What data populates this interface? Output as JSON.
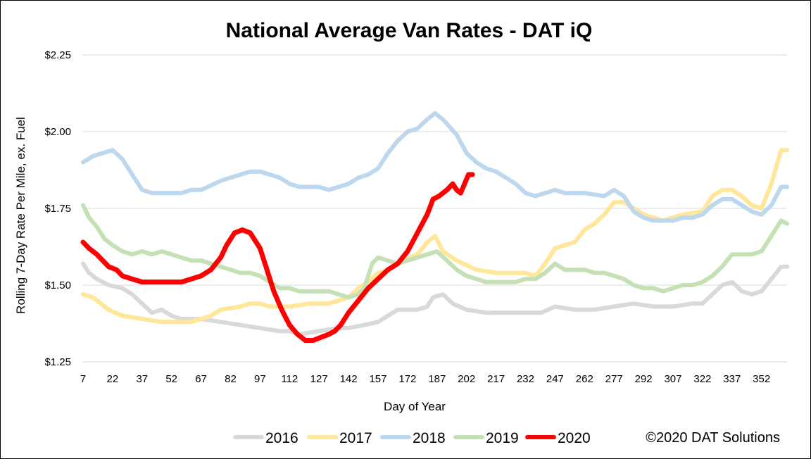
{
  "chart_data": {
    "type": "line",
    "title": "National Average Van Rates - DAT iQ",
    "xlabel": "Day of Year",
    "ylabel": "Rolling 7-Day Rate Per Mile, ex. Fuel",
    "credit": "©2020 DAT Solutions",
    "xlim": [
      7,
      365
    ],
    "ylim": [
      1.25,
      2.25
    ],
    "x_ticks": [
      7,
      22,
      37,
      52,
      67,
      82,
      97,
      112,
      127,
      142,
      157,
      172,
      187,
      202,
      217,
      232,
      247,
      262,
      277,
      292,
      307,
      322,
      337,
      352
    ],
    "y_ticks": [
      1.25,
      1.5,
      1.75,
      2.0,
      2.25
    ],
    "y_tick_labels": [
      "$1.25",
      "$1.50",
      "$1.75",
      "$2.00",
      "$2.25"
    ],
    "grid": "horizontal",
    "legend_position": "bottom",
    "series": [
      {
        "name": "2016",
        "color": "#D9D9D9",
        "points": [
          [
            7,
            1.57
          ],
          [
            10,
            1.54
          ],
          [
            14,
            1.52
          ],
          [
            20,
            1.5
          ],
          [
            27,
            1.49
          ],
          [
            32,
            1.47
          ],
          [
            37,
            1.44
          ],
          [
            42,
            1.41
          ],
          [
            47,
            1.42
          ],
          [
            52,
            1.4
          ],
          [
            57,
            1.39
          ],
          [
            67,
            1.39
          ],
          [
            77,
            1.38
          ],
          [
            87,
            1.37
          ],
          [
            97,
            1.36
          ],
          [
            107,
            1.35
          ],
          [
            112,
            1.35
          ],
          [
            117,
            1.34
          ],
          [
            127,
            1.35
          ],
          [
            137,
            1.36
          ],
          [
            142,
            1.36
          ],
          [
            150,
            1.37
          ],
          [
            157,
            1.38
          ],
          [
            162,
            1.4
          ],
          [
            167,
            1.42
          ],
          [
            177,
            1.42
          ],
          [
            182,
            1.43
          ],
          [
            185,
            1.46
          ],
          [
            190,
            1.47
          ],
          [
            195,
            1.44
          ],
          [
            202,
            1.42
          ],
          [
            212,
            1.41
          ],
          [
            222,
            1.41
          ],
          [
            232,
            1.41
          ],
          [
            240,
            1.41
          ],
          [
            247,
            1.43
          ],
          [
            257,
            1.42
          ],
          [
            267,
            1.42
          ],
          [
            277,
            1.43
          ],
          [
            287,
            1.44
          ],
          [
            297,
            1.43
          ],
          [
            307,
            1.43
          ],
          [
            317,
            1.44
          ],
          [
            322,
            1.44
          ],
          [
            327,
            1.47
          ],
          [
            332,
            1.5
          ],
          [
            337,
            1.51
          ],
          [
            342,
            1.48
          ],
          [
            347,
            1.47
          ],
          [
            352,
            1.48
          ],
          [
            357,
            1.52
          ],
          [
            362,
            1.56
          ],
          [
            365,
            1.56
          ]
        ]
      },
      {
        "name": "2017",
        "color": "#FFE699",
        "points": [
          [
            7,
            1.47
          ],
          [
            12,
            1.46
          ],
          [
            20,
            1.42
          ],
          [
            27,
            1.4
          ],
          [
            37,
            1.39
          ],
          [
            47,
            1.38
          ],
          [
            57,
            1.38
          ],
          [
            62,
            1.38
          ],
          [
            67,
            1.39
          ],
          [
            72,
            1.4
          ],
          [
            77,
            1.42
          ],
          [
            87,
            1.43
          ],
          [
            92,
            1.44
          ],
          [
            97,
            1.44
          ],
          [
            102,
            1.43
          ],
          [
            112,
            1.43
          ],
          [
            122,
            1.44
          ],
          [
            132,
            1.44
          ],
          [
            142,
            1.46
          ],
          [
            147,
            1.49
          ],
          [
            152,
            1.51
          ],
          [
            157,
            1.54
          ],
          [
            162,
            1.55
          ],
          [
            170,
            1.58
          ],
          [
            177,
            1.6
          ],
          [
            182,
            1.64
          ],
          [
            186,
            1.66
          ],
          [
            190,
            1.61
          ],
          [
            197,
            1.58
          ],
          [
            207,
            1.55
          ],
          [
            217,
            1.54
          ],
          [
            227,
            1.54
          ],
          [
            232,
            1.54
          ],
          [
            237,
            1.53
          ],
          [
            242,
            1.57
          ],
          [
            247,
            1.62
          ],
          [
            252,
            1.63
          ],
          [
            257,
            1.64
          ],
          [
            262,
            1.68
          ],
          [
            267,
            1.7
          ],
          [
            272,
            1.73
          ],
          [
            277,
            1.77
          ],
          [
            282,
            1.77
          ],
          [
            292,
            1.73
          ],
          [
            302,
            1.71
          ],
          [
            312,
            1.73
          ],
          [
            322,
            1.74
          ],
          [
            327,
            1.79
          ],
          [
            332,
            1.81
          ],
          [
            337,
            1.81
          ],
          [
            342,
            1.79
          ],
          [
            347,
            1.76
          ],
          [
            352,
            1.75
          ],
          [
            357,
            1.83
          ],
          [
            362,
            1.94
          ],
          [
            365,
            1.94
          ]
        ]
      },
      {
        "name": "2018",
        "color": "#BDD7EE",
        "points": [
          [
            7,
            1.9
          ],
          [
            12,
            1.92
          ],
          [
            17,
            1.93
          ],
          [
            22,
            1.94
          ],
          [
            27,
            1.91
          ],
          [
            32,
            1.86
          ],
          [
            37,
            1.81
          ],
          [
            42,
            1.8
          ],
          [
            52,
            1.8
          ],
          [
            57,
            1.8
          ],
          [
            62,
            1.81
          ],
          [
            67,
            1.81
          ],
          [
            77,
            1.84
          ],
          [
            87,
            1.86
          ],
          [
            92,
            1.87
          ],
          [
            97,
            1.87
          ],
          [
            102,
            1.86
          ],
          [
            107,
            1.85
          ],
          [
            112,
            1.83
          ],
          [
            117,
            1.82
          ],
          [
            127,
            1.82
          ],
          [
            132,
            1.81
          ],
          [
            142,
            1.83
          ],
          [
            147,
            1.85
          ],
          [
            152,
            1.86
          ],
          [
            157,
            1.88
          ],
          [
            162,
            1.93
          ],
          [
            167,
            1.97
          ],
          [
            172,
            2.0
          ],
          [
            177,
            2.01
          ],
          [
            182,
            2.04
          ],
          [
            186,
            2.06
          ],
          [
            190,
            2.04
          ],
          [
            197,
            1.99
          ],
          [
            202,
            1.93
          ],
          [
            207,
            1.9
          ],
          [
            212,
            1.88
          ],
          [
            217,
            1.87
          ],
          [
            222,
            1.85
          ],
          [
            227,
            1.83
          ],
          [
            232,
            1.8
          ],
          [
            237,
            1.79
          ],
          [
            247,
            1.81
          ],
          [
            252,
            1.8
          ],
          [
            262,
            1.8
          ],
          [
            272,
            1.79
          ],
          [
            277,
            1.81
          ],
          [
            282,
            1.79
          ],
          [
            287,
            1.74
          ],
          [
            292,
            1.72
          ],
          [
            297,
            1.71
          ],
          [
            307,
            1.71
          ],
          [
            312,
            1.72
          ],
          [
            317,
            1.72
          ],
          [
            322,
            1.73
          ],
          [
            327,
            1.76
          ],
          [
            332,
            1.78
          ],
          [
            337,
            1.78
          ],
          [
            342,
            1.76
          ],
          [
            347,
            1.74
          ],
          [
            352,
            1.73
          ],
          [
            357,
            1.76
          ],
          [
            362,
            1.82
          ],
          [
            365,
            1.82
          ]
        ]
      },
      {
        "name": "2019",
        "color": "#C5E0B4",
        "points": [
          [
            7,
            1.76
          ],
          [
            10,
            1.72
          ],
          [
            14,
            1.69
          ],
          [
            18,
            1.65
          ],
          [
            22,
            1.63
          ],
          [
            27,
            1.61
          ],
          [
            32,
            1.6
          ],
          [
            37,
            1.61
          ],
          [
            42,
            1.6
          ],
          [
            47,
            1.61
          ],
          [
            52,
            1.6
          ],
          [
            57,
            1.59
          ],
          [
            62,
            1.58
          ],
          [
            67,
            1.58
          ],
          [
            72,
            1.57
          ],
          [
            77,
            1.56
          ],
          [
            82,
            1.55
          ],
          [
            87,
            1.54
          ],
          [
            92,
            1.54
          ],
          [
            97,
            1.53
          ],
          [
            102,
            1.51
          ],
          [
            107,
            1.49
          ],
          [
            112,
            1.49
          ],
          [
            117,
            1.48
          ],
          [
            122,
            1.48
          ],
          [
            127,
            1.48
          ],
          [
            132,
            1.48
          ],
          [
            137,
            1.47
          ],
          [
            142,
            1.46
          ],
          [
            147,
            1.47
          ],
          [
            150,
            1.49
          ],
          [
            154,
            1.57
          ],
          [
            157,
            1.59
          ],
          [
            162,
            1.58
          ],
          [
            167,
            1.57
          ],
          [
            172,
            1.58
          ],
          [
            177,
            1.59
          ],
          [
            182,
            1.6
          ],
          [
            187,
            1.61
          ],
          [
            192,
            1.58
          ],
          [
            197,
            1.55
          ],
          [
            202,
            1.53
          ],
          [
            207,
            1.52
          ],
          [
            212,
            1.51
          ],
          [
            217,
            1.51
          ],
          [
            222,
            1.51
          ],
          [
            227,
            1.51
          ],
          [
            232,
            1.52
          ],
          [
            237,
            1.52
          ],
          [
            242,
            1.54
          ],
          [
            247,
            1.57
          ],
          [
            252,
            1.55
          ],
          [
            257,
            1.55
          ],
          [
            262,
            1.55
          ],
          [
            267,
            1.54
          ],
          [
            272,
            1.54
          ],
          [
            277,
            1.53
          ],
          [
            282,
            1.52
          ],
          [
            287,
            1.5
          ],
          [
            292,
            1.49
          ],
          [
            297,
            1.49
          ],
          [
            302,
            1.48
          ],
          [
            307,
            1.49
          ],
          [
            312,
            1.5
          ],
          [
            317,
            1.5
          ],
          [
            322,
            1.51
          ],
          [
            327,
            1.53
          ],
          [
            332,
            1.56
          ],
          [
            337,
            1.6
          ],
          [
            342,
            1.6
          ],
          [
            347,
            1.6
          ],
          [
            352,
            1.61
          ],
          [
            357,
            1.66
          ],
          [
            362,
            1.71
          ],
          [
            365,
            1.7
          ]
        ]
      },
      {
        "name": "2020",
        "color": "#FF0000",
        "points": [
          [
            7,
            1.64
          ],
          [
            10,
            1.62
          ],
          [
            14,
            1.6
          ],
          [
            17,
            1.58
          ],
          [
            20,
            1.56
          ],
          [
            24,
            1.55
          ],
          [
            27,
            1.53
          ],
          [
            32,
            1.52
          ],
          [
            37,
            1.51
          ],
          [
            42,
            1.51
          ],
          [
            47,
            1.51
          ],
          [
            52,
            1.51
          ],
          [
            57,
            1.51
          ],
          [
            62,
            1.52
          ],
          [
            67,
            1.53
          ],
          [
            72,
            1.55
          ],
          [
            77,
            1.59
          ],
          [
            80,
            1.63
          ],
          [
            84,
            1.67
          ],
          [
            88,
            1.68
          ],
          [
            92,
            1.67
          ],
          [
            97,
            1.62
          ],
          [
            100,
            1.56
          ],
          [
            104,
            1.48
          ],
          [
            108,
            1.42
          ],
          [
            112,
            1.37
          ],
          [
            116,
            1.34
          ],
          [
            120,
            1.32
          ],
          [
            124,
            1.32
          ],
          [
            128,
            1.33
          ],
          [
            132,
            1.34
          ],
          [
            135,
            1.35
          ],
          [
            138,
            1.37
          ],
          [
            142,
            1.41
          ],
          [
            147,
            1.45
          ],
          [
            152,
            1.49
          ],
          [
            157,
            1.52
          ],
          [
            162,
            1.55
          ],
          [
            167,
            1.57
          ],
          [
            172,
            1.61
          ],
          [
            177,
            1.67
          ],
          [
            182,
            1.73
          ],
          [
            185,
            1.78
          ],
          [
            188,
            1.79
          ],
          [
            192,
            1.81
          ],
          [
            195,
            1.83
          ],
          [
            197,
            1.81
          ],
          [
            199,
            1.8
          ],
          [
            201,
            1.83
          ],
          [
            203,
            1.86
          ],
          [
            205,
            1.86
          ]
        ]
      }
    ]
  }
}
